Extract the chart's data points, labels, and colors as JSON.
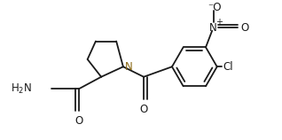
{
  "bg_color": "#ffffff",
  "line_color": "#1a1a1a",
  "lw": 1.3,
  "figsize": [
    3.18,
    1.58
  ],
  "dpi": 100,
  "xlim": [
    0,
    10
  ],
  "ylim": [
    0,
    5
  ]
}
